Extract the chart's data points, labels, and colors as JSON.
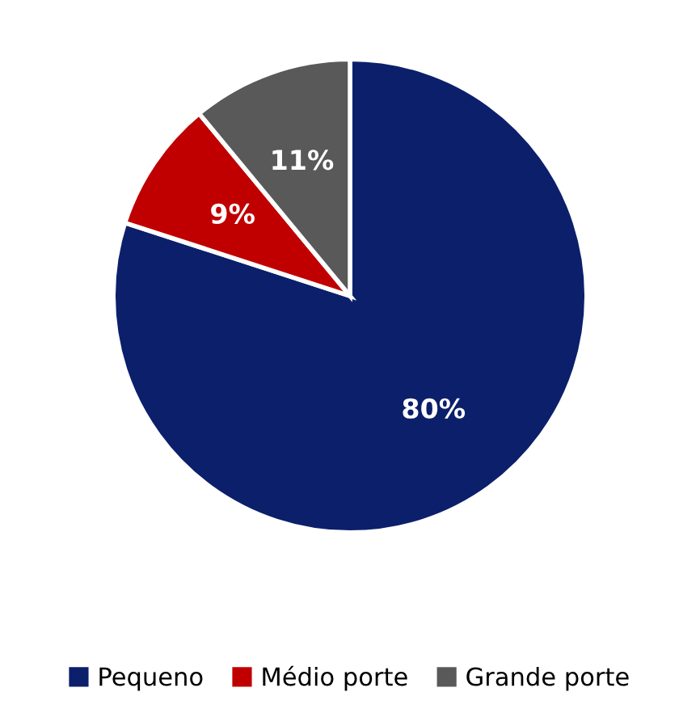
{
  "chart_data": {
    "type": "pie",
    "categories": [
      "Pequeno",
      "Médio porte",
      "Grande porte"
    ],
    "values": [
      80,
      9,
      11
    ],
    "colors": [
      "#0c1f6b",
      "#c00000",
      "#595959"
    ],
    "value_labels": [
      "80%",
      "9%",
      "11%"
    ],
    "legend": "bottom"
  }
}
